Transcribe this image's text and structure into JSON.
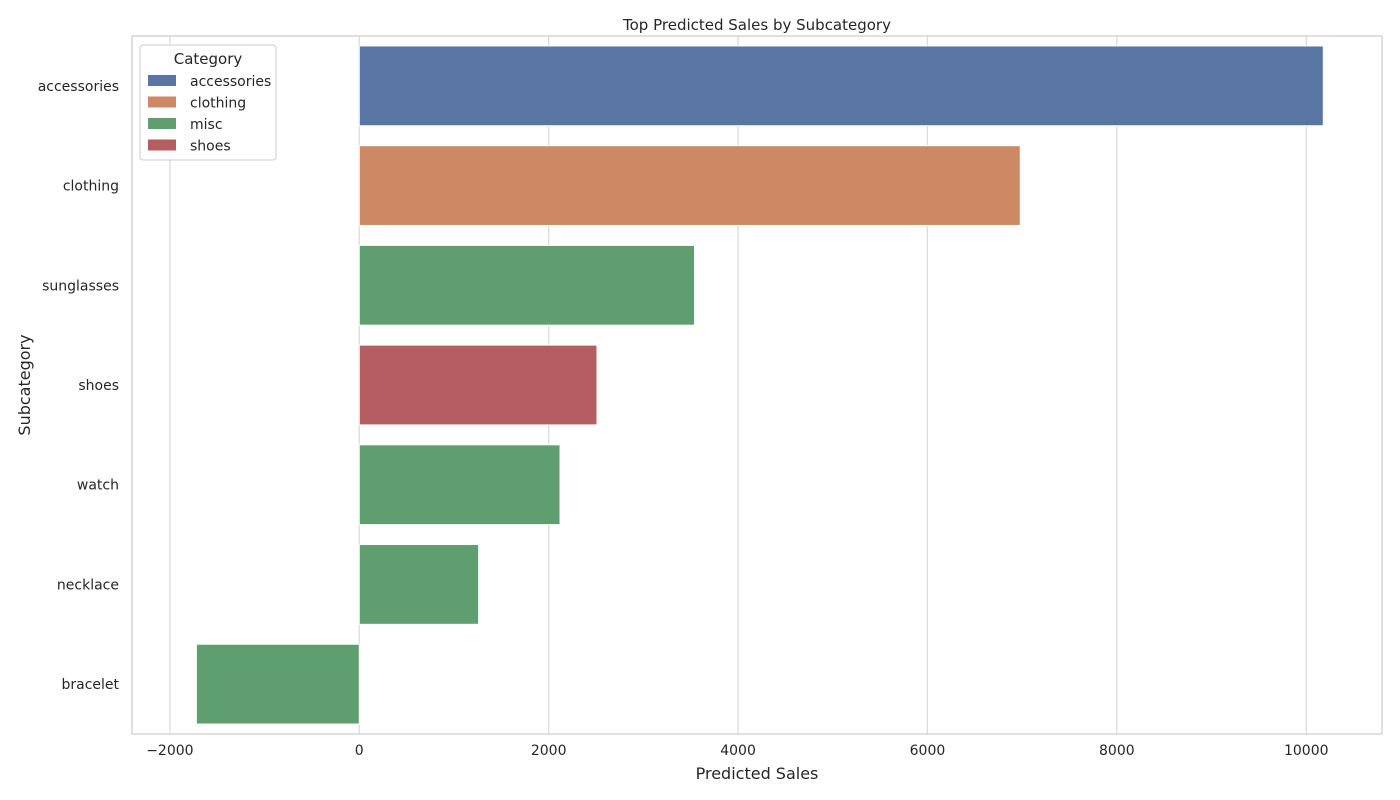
{
  "chart_data": {
    "type": "bar",
    "orientation": "horizontal",
    "title": "Top Predicted Sales by Subcategory",
    "xlabel": "Predicted Sales",
    "ylabel": "Subcategory",
    "xlim": [
      -2400,
      10800
    ],
    "xticks": [
      -2000,
      0,
      2000,
      4000,
      6000,
      8000,
      10000
    ],
    "xtick_labels": [
      "−2000",
      "0",
      "2000",
      "4000",
      "6000",
      "8000",
      "10000"
    ],
    "grid": "vertical",
    "legend": {
      "title": "Category",
      "placement": "top-left",
      "entries": [
        {
          "label": "accessories",
          "color": "#5875a4"
        },
        {
          "label": "clothing",
          "color": "#cc8963"
        },
        {
          "label": "misc",
          "color": "#5f9e6e"
        },
        {
          "label": "shoes",
          "color": "#b55d60"
        }
      ]
    },
    "categories": [
      "accessories",
      "clothing",
      "sunglasses",
      "shoes",
      "watch",
      "necklace",
      "bracelet"
    ],
    "values": [
      10180,
      6980,
      3540,
      2510,
      2120,
      1260,
      -1720
    ],
    "bar_category": [
      "accessories",
      "clothing",
      "misc",
      "shoes",
      "misc",
      "misc",
      "misc"
    ]
  }
}
